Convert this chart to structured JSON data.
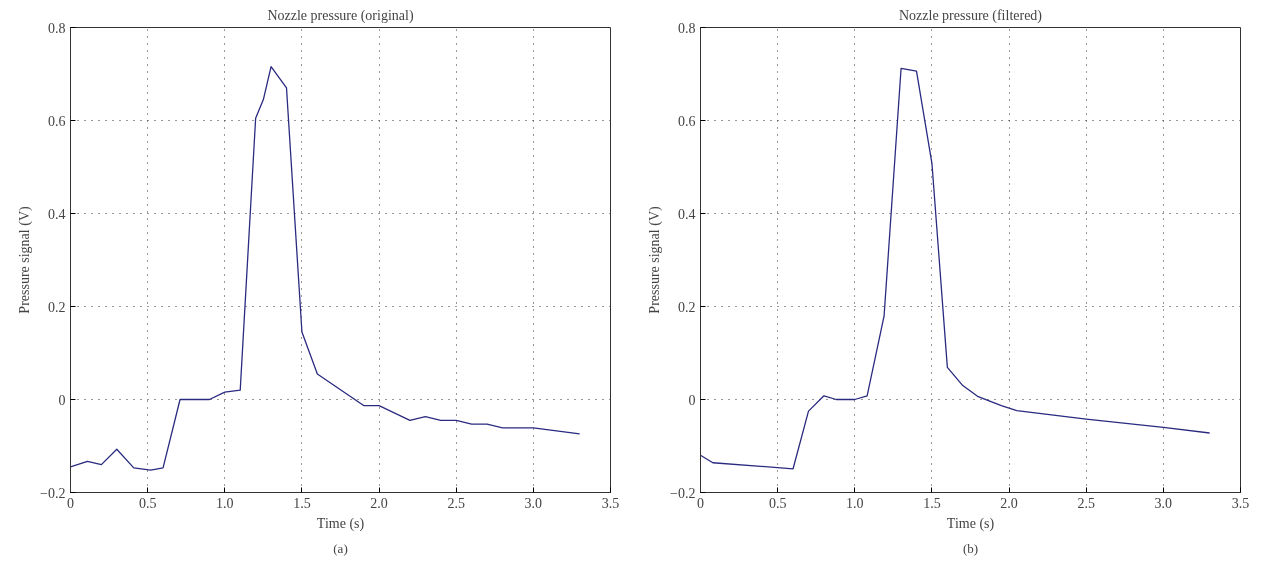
{
  "chart_data": [
    {
      "type": "line",
      "title": "Nozzle pressure (original)",
      "xlabel": "Time (s)",
      "ylabel": "Pressure signal (V)",
      "annotations": [
        "(a)"
      ],
      "grid": true,
      "line_style": "solid",
      "xlim": [
        0,
        3.5
      ],
      "ylim": [
        -0.2,
        0.8
      ],
      "xticks": [
        0,
        0.5,
        {
          "value": 1,
          "label": "1.0"
        },
        1.5,
        {
          "value": 2,
          "label": "2.0"
        },
        2.5,
        {
          "value": 3,
          "label": "3.0"
        },
        3.5
      ],
      "yticks": [
        {
          "value": -0.2,
          "label": "−0.2"
        },
        0,
        0.2,
        0.4,
        0.6,
        0.8
      ],
      "x": [
        0,
        0.11,
        0.2,
        0.3,
        0.41,
        0.52,
        0.6,
        0.71,
        0.9,
        1.0,
        1.1,
        1.2,
        1.25,
        1.3,
        1.4,
        1.5,
        1.6,
        1.9,
        2.0,
        2.2,
        2.3,
        2.4,
        2.5,
        2.6,
        2.7,
        2.8,
        3.0,
        3.3
      ],
      "series": [
        {
          "color": "#2a2a80",
          "values": [
            -0.145,
            -0.133,
            -0.14,
            -0.107,
            -0.147,
            -0.152,
            -0.147,
            0,
            0,
            0.016,
            0.02,
            0.605,
            0.645,
            0.716,
            0.67,
            0.145,
            0.055,
            -0.013,
            -0.013,
            -0.045,
            -0.037,
            -0.045,
            -0.045,
            -0.053,
            -0.053,
            -0.061,
            -0.061,
            -0.074
          ]
        }
      ]
    },
    {
      "type": "line",
      "title": "Nozzle pressure (filtered)",
      "xlabel": "Time (s)",
      "ylabel": "Pressure signal (V)",
      "annotations": [
        "(b)"
      ],
      "grid": true,
      "line_style": "solid",
      "xlim": [
        0,
        3.5
      ],
      "ylim": [
        -0.2,
        0.8
      ],
      "xticks": [
        0,
        0.5,
        {
          "value": 1,
          "label": "1.0"
        },
        1.5,
        {
          "value": 2,
          "label": "2.0"
        },
        2.5,
        {
          "value": 3,
          "label": "3.0"
        },
        3.5
      ],
      "yticks": [
        {
          "value": -0.2,
          "label": "−0.2"
        },
        0,
        0.2,
        0.4,
        0.6,
        0.8
      ],
      "x": [
        0,
        0.08,
        0.6,
        0.7,
        0.8,
        0.88,
        1.0,
        1.08,
        1.19,
        1.3,
        1.4,
        1.5,
        1.6,
        1.7,
        1.8,
        1.95,
        2.05,
        2.5,
        3.0,
        3.3
      ],
      "series": [
        {
          "color": "#2a2a80",
          "values": [
            -0.12,
            -0.136,
            -0.149,
            -0.025,
            0.008,
            0,
            0,
            0.008,
            0.18,
            0.712,
            0.706,
            0.508,
            0.069,
            0.03,
            0.006,
            -0.013,
            -0.024,
            -0.042,
            -0.06,
            -0.072
          ]
        }
      ]
    }
  ]
}
